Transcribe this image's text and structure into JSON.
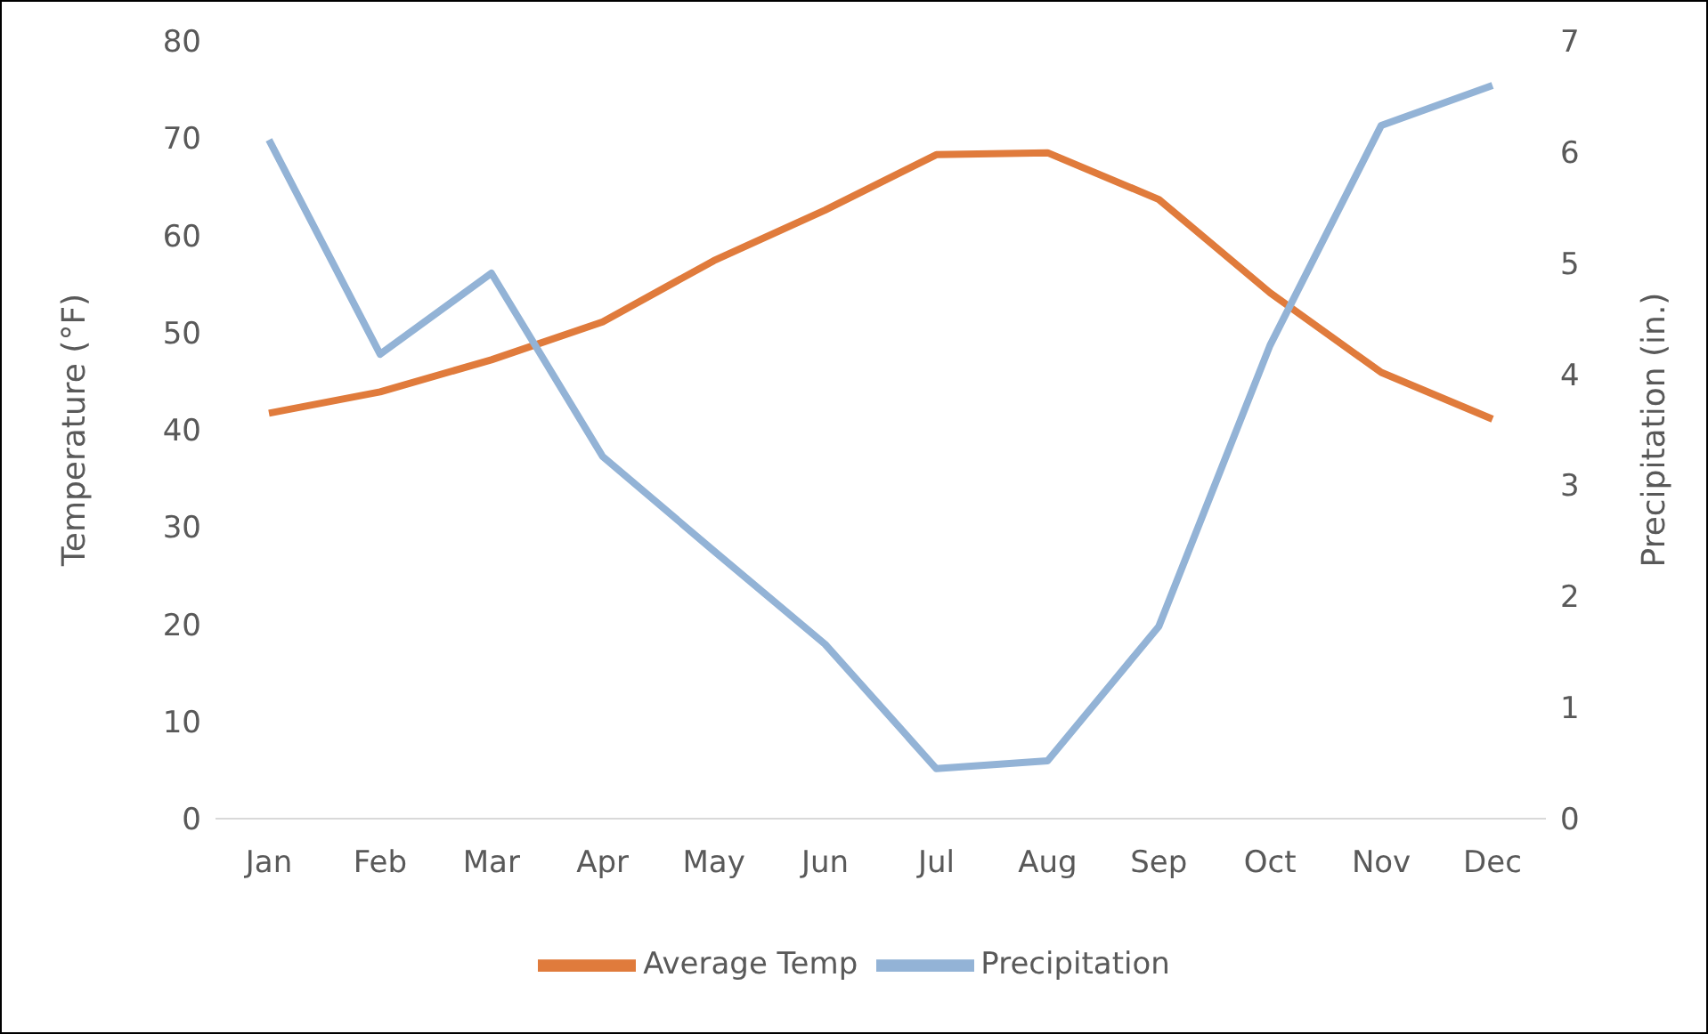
{
  "chart_data": {
    "type": "line",
    "categories": [
      "Jan",
      "Feb",
      "Mar",
      "Apr",
      "May",
      "Jun",
      "Jul",
      "Aug",
      "Sep",
      "Oct",
      "Nov",
      "Dec"
    ],
    "series": [
      {
        "name": "Average Temp",
        "color": "#e07b3c",
        "values": [
          41.7,
          43.9,
          47.2,
          51.1,
          57.4,
          62.6,
          68.3,
          68.5,
          63.7,
          54.1,
          45.9,
          41.1
        ]
      },
      {
        "name": "Precipitation",
        "color": "#93b3d6",
        "axis": "y2",
        "values": [
          6.11,
          4.18,
          4.91,
          3.26,
          2.41,
          1.57,
          0.45,
          0.52,
          1.73,
          4.26,
          6.24,
          6.6
        ]
      }
    ],
    "ylabel": "Temperature (°F)",
    "y2label": "Precipitation (in.)",
    "ylim": [
      0,
      80
    ],
    "yticks": [
      0,
      10,
      20,
      30,
      40,
      50,
      60,
      70,
      80
    ],
    "y2lim": [
      0,
      7
    ],
    "y2ticks": [
      0,
      1,
      2,
      3,
      4,
      5,
      6,
      7
    ],
    "grid": false,
    "legend": "bottom"
  }
}
